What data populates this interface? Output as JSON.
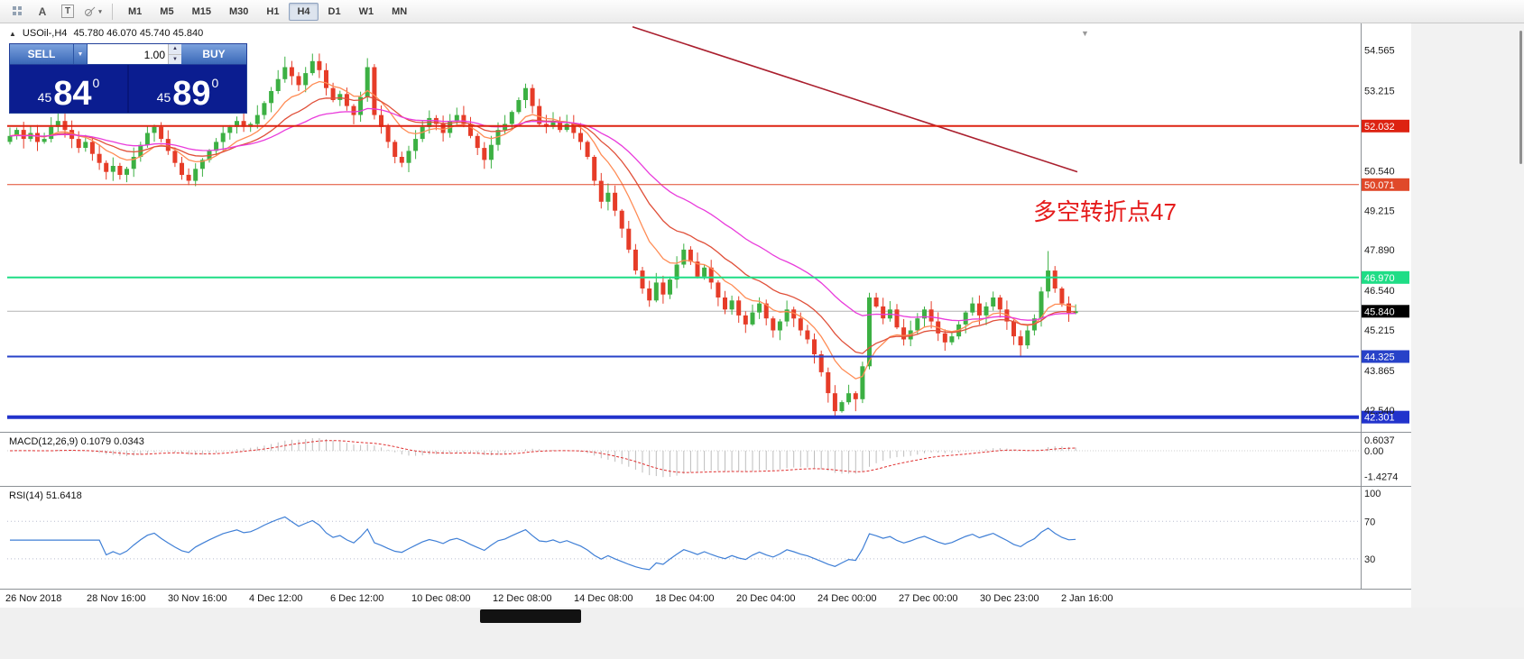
{
  "toolbar": {
    "icons": {
      "letter_a": "A",
      "letter_t": "T"
    },
    "timeframes": [
      {
        "label": "M1"
      },
      {
        "label": "M5"
      },
      {
        "label": "M15"
      },
      {
        "label": "M30"
      },
      {
        "label": "H1"
      },
      {
        "label": "H4",
        "active": true
      },
      {
        "label": "D1"
      },
      {
        "label": "W1"
      },
      {
        "label": "MN"
      }
    ]
  },
  "icons": {
    "caret_down": "▼",
    "caret_up": "▲",
    "chart_marker": "▲",
    "scroll_marker": "▼",
    "shapes_caret": "▾"
  },
  "chart": {
    "symbol": "USOil-,H4",
    "ohlc_readout": "45.780 46.070 45.740 45.840",
    "annotation": {
      "text": "多空转折点47",
      "color": "#e51c1c"
    },
    "trade_panel": {
      "sell_label": "SELL",
      "buy_label": "BUY",
      "volume": "1.00",
      "bid": {
        "small": "45",
        "big": "84",
        "sup": "0"
      },
      "ask": {
        "small": "45",
        "big": "89",
        "sup": "0"
      }
    }
  },
  "chart_data": {
    "type": "candlestick",
    "symbol": "USOil-",
    "timeframe": "H4",
    "open_rule": "previous_close",
    "first_open": 51.5,
    "closes": [
      51.7,
      51.9,
      51.6,
      51.8,
      51.5,
      51.6,
      52.0,
      52.2,
      51.9,
      51.6,
      51.3,
      51.5,
      51.1,
      50.8,
      50.5,
      50.7,
      50.4,
      50.6,
      51.0,
      51.4,
      51.8,
      52.0,
      51.6,
      51.2,
      50.8,
      50.4,
      50.2,
      50.6,
      50.9,
      51.2,
      51.5,
      51.8,
      52.0,
      52.2,
      52.0,
      52.1,
      52.4,
      52.8,
      53.2,
      53.6,
      54.0,
      53.7,
      53.4,
      53.8,
      54.2,
      53.9,
      53.3,
      52.9,
      53.1,
      52.7,
      52.4,
      53.0,
      54.0,
      52.4,
      52.0,
      51.5,
      51.0,
      50.8,
      51.2,
      51.6,
      52.0,
      52.3,
      52.1,
      51.8,
      52.2,
      52.4,
      52.1,
      51.7,
      51.3,
      50.9,
      51.4,
      51.9,
      52.1,
      52.5,
      52.9,
      53.3,
      52.7,
      52.1,
      52.0,
      52.2,
      51.9,
      52.1,
      51.8,
      51.5,
      51.0,
      50.2,
      49.5,
      49.8,
      49.2,
      48.6,
      47.9,
      47.2,
      46.6,
      46.2,
      46.8,
      46.4,
      46.9,
      47.4,
      47.9,
      47.5,
      47.0,
      47.3,
      46.8,
      46.3,
      45.9,
      46.2,
      45.7,
      45.4,
      45.8,
      46.1,
      45.6,
      45.2,
      45.5,
      45.9,
      45.6,
      45.2,
      44.9,
      44.4,
      43.8,
      43.1,
      42.5,
      42.8,
      43.1,
      42.9,
      44.0,
      46.3,
      46.0,
      45.6,
      45.9,
      45.3,
      44.9,
      45.2,
      45.6,
      45.9,
      45.5,
      45.1,
      44.8,
      45.0,
      45.4,
      45.8,
      46.1,
      45.7,
      46.0,
      46.3,
      45.9,
      45.5,
      45.0,
      44.7,
      45.2,
      45.6,
      46.5,
      47.2,
      46.6,
      46.1,
      45.78,
      45.84
    ],
    "wick_overrides": {
      "40": {
        "h": 54.35
      },
      "44": {
        "h": 54.45
      },
      "52": {
        "h": 54.3
      },
      "53": {
        "h": 54.1,
        "l": 52.25
      },
      "75": {
        "h": 53.45
      },
      "120": {
        "l": 42.3
      },
      "121": {
        "l": 42.45
      },
      "123": {
        "l": 42.5
      },
      "147": {
        "l": 44.35
      },
      "151": {
        "h": 47.85
      },
      "155": {
        "h": 46.07,
        "l": 45.74
      }
    },
    "ylim": [
      41.9,
      55.4
    ],
    "y_ticks": [
      "54.565",
      "53.215",
      "50.540",
      "49.215",
      "47.890",
      "46.540",
      "45.215",
      "43.865",
      "42.540"
    ],
    "levels": [
      {
        "price": 52.032,
        "label": "52.032",
        "color": "#dd2211",
        "width": 2
      },
      {
        "price": 50.071,
        "label": "50.071",
        "color": "#e0492a",
        "width": 1
      },
      {
        "price": 46.97,
        "label": "46.970",
        "color": "#1fdd86",
        "width": 2
      },
      {
        "price": 44.325,
        "label": "44.325",
        "color": "#2742c8",
        "width": 2
      },
      {
        "price": 42.301,
        "label": "42.301",
        "color": "#2233cc",
        "width": 4
      }
    ],
    "current_price": 45.84,
    "current_price_label": "45.840",
    "up_color": "#3cb043",
    "down_color": "#e63c28",
    "mas": [
      {
        "period": 9,
        "type": "ema",
        "color": "#ff8c55"
      },
      {
        "period": 18,
        "type": "ema",
        "color": "#e0503a"
      },
      {
        "period": 34,
        "type": "ema",
        "color": "#e93bdb"
      }
    ],
    "trendline": {
      "x1_frac": 0.4626,
      "p1": 55.35,
      "x2_frac": 0.792,
      "p2": 50.5,
      "color": "#aa1f2e"
    },
    "macd": {
      "fast": 12,
      "slow": 26,
      "signal": 9,
      "label": "MACD(12,26,9) 0.1079 0.0343",
      "ticks": [
        "0.6037",
        "0.00",
        "-1.4274"
      ],
      "ylim": [
        -1.75,
        0.85
      ],
      "hist_color": "#bdbdbd",
      "signal_color": "#e03030"
    },
    "rsi": {
      "period": 14,
      "label": "RSI(14) 51.6418",
      "ticks": [
        "100",
        "70",
        "30"
      ],
      "levels": [
        70,
        30
      ],
      "ylim": [
        2,
        104
      ],
      "color": "#3f7fd6"
    },
    "x_labels": [
      "26 Nov 2018",
      "28 Nov 16:00",
      "30 Nov 16:00",
      "4 Dec 12:00",
      "6 Dec 12:00",
      "10 Dec 08:00",
      "12 Dec 08:00",
      "14 Dec 08:00",
      "18 Dec 04:00",
      "20 Dec 04:00",
      "24 Dec 00:00",
      "27 Dec 00:00",
      "30 Dec 23:00",
      "2 Jan 16:00"
    ]
  }
}
